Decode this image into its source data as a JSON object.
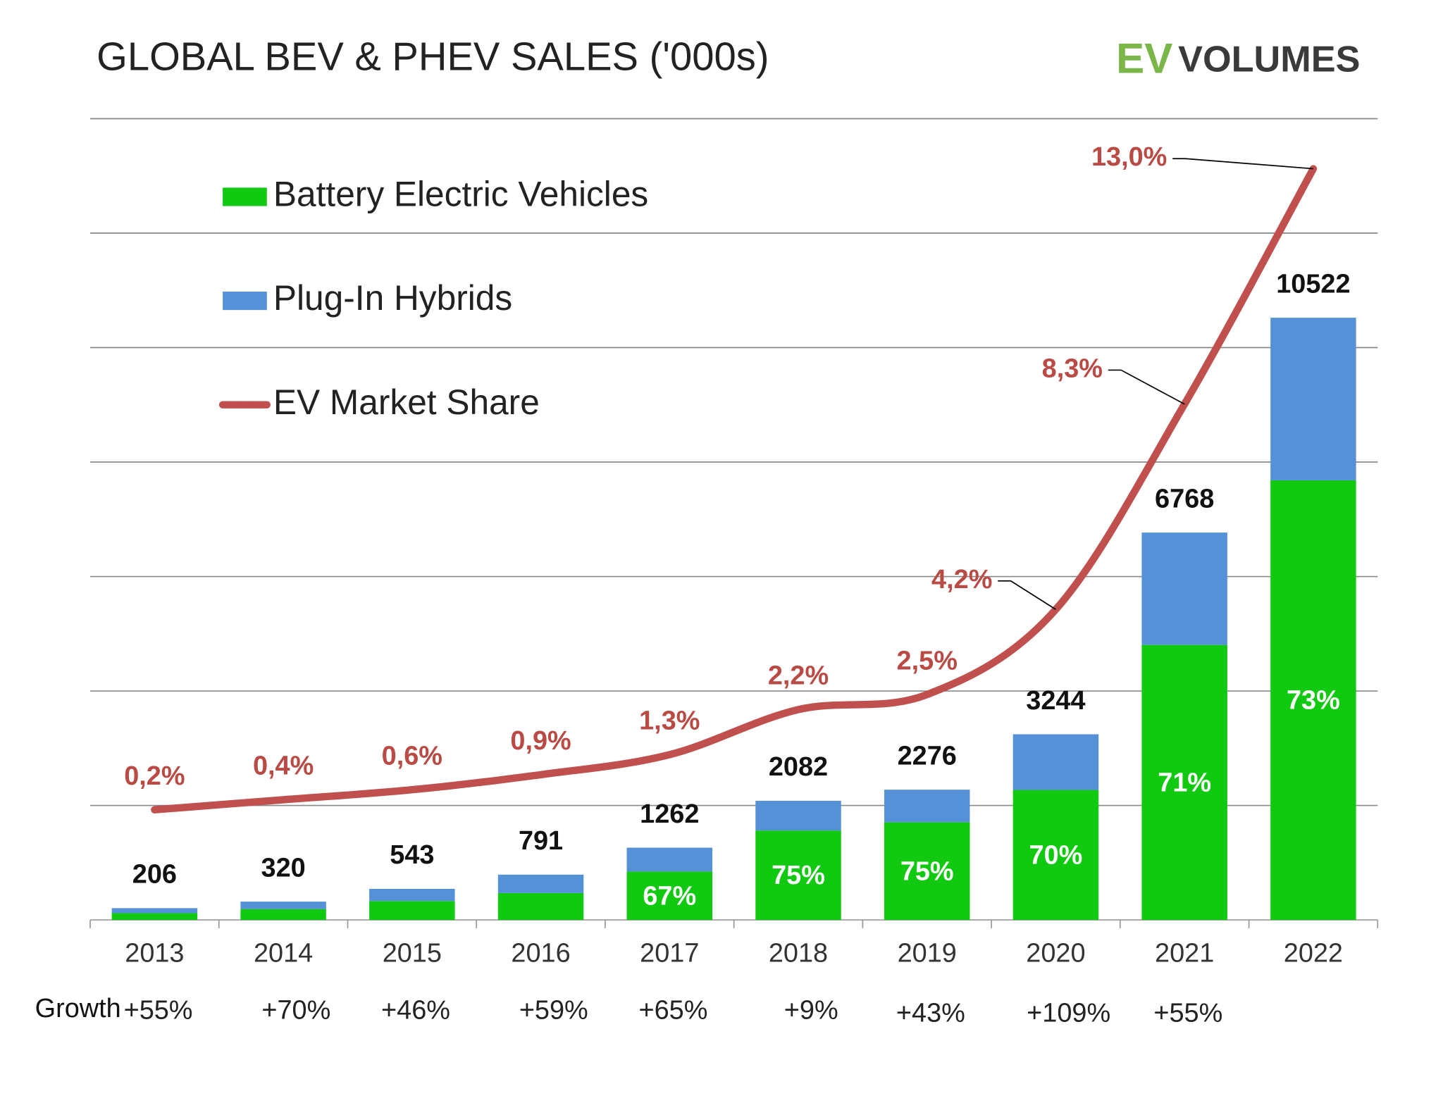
{
  "chart_data": {
    "type": "bar",
    "title": "GLOBAL BEV & PHEV SALES ('000s)",
    "logo": [
      "EV",
      "VOLUMES"
    ],
    "categories": [
      "2013",
      "2014",
      "2015",
      "2016",
      "2017",
      "2018",
      "2019",
      "2020",
      "2021",
      "2022"
    ],
    "series": [
      {
        "name": "Battery Electric Vehicles",
        "color": "#12c912",
        "values": [
          118,
          190,
          330,
          470,
          846,
          1562,
          1707,
          2271,
          4805,
          7681
        ],
        "share": [
          null,
          null,
          null,
          null,
          67,
          75,
          75,
          70,
          71,
          73
        ],
        "share_labels": [
          null,
          null,
          null,
          null,
          "67%",
          "75%",
          "75%",
          "70%",
          "71%",
          "73%"
        ]
      },
      {
        "name": "Plug-In Hybrids",
        "color": "#5591d6",
        "values": [
          88,
          130,
          213,
          321,
          416,
          520,
          569,
          973,
          1963,
          2841
        ]
      },
      {
        "name": "EV Market Share",
        "type": "line",
        "axis": "y2",
        "color": "#c0504d",
        "values": [
          0.2,
          0.4,
          0.6,
          0.9,
          1.3,
          2.2,
          2.5,
          4.2,
          8.3,
          13.0
        ],
        "value_labels": [
          "0,2%",
          "0,4%",
          "0,6%",
          "0,9%",
          "1,3%",
          "2,2%",
          "2,5%",
          "4,2%",
          "8,3%",
          "13,0%"
        ]
      }
    ],
    "totals": [
      206,
      320,
      543,
      791,
      1262,
      2082,
      2276,
      3244,
      6768,
      10522
    ],
    "growth": {
      "label": "Growth",
      "values": [
        55,
        70,
        46,
        59,
        65,
        9,
        43,
        109,
        55
      ],
      "value_labels": [
        "+55%",
        "+70%",
        "+46%",
        "+59%",
        "+65%",
        "+9%",
        "+43%",
        "+109%",
        "+55%"
      ]
    },
    "ylim": [
      0,
      14000
    ],
    "yticks": [
      0,
      2000,
      4000,
      6000,
      8000,
      10000,
      12000,
      14000
    ],
    "y2lim": [
      -2,
      14
    ],
    "grid": true
  }
}
